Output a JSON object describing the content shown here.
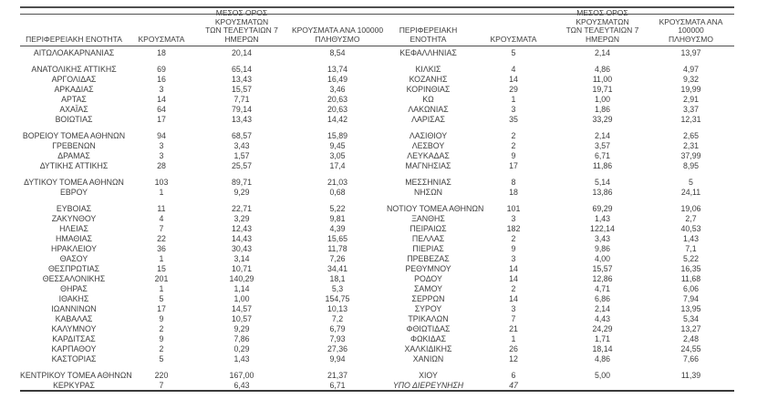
{
  "page": {
    "background": "#ffffff",
    "text_color": "#3d3d3d",
    "line_color": "#4f4f4f"
  },
  "table": {
    "headers": {
      "region": "ΠΕΡΙΦΕΡΕΙΑΚΗ ΕΝΟΤΗΤΑ",
      "cases": "ΚΡΟΥΣΜΑΤΑ",
      "avg7": "ΜΕΣΟΣ ΟΡΟΣ ΚΡΟΥΣΜΑΤΩΝ\nΤΩΝ ΤΕΛΕΥΤΑΙΩΝ 7\nΗΜΕΡΩΝ",
      "per100k": "ΚΡΟΥΣΜΑΤΑ ΑΝΑ 100000\nΠΛΗΘΥΣΜΟ"
    },
    "left_rows": [
      {
        "region": "ΑΙΤΩΛΟΑΚΑΡΝΑΝΙΑΣ",
        "cases": "18",
        "avg7": "20,14",
        "per100k": "8,54"
      },
      null,
      {
        "region": "ΑΝΑΤΟΛΙΚΗΣ ΑΤΤΙΚΗΣ",
        "cases": "69",
        "avg7": "65,14",
        "per100k": "13,74"
      },
      {
        "region": "ΑΡΓΟΛΙΔΑΣ",
        "cases": "16",
        "avg7": "13,43",
        "per100k": "16,49"
      },
      {
        "region": "ΑΡΚΑΔΙΑΣ",
        "cases": "3",
        "avg7": "15,57",
        "per100k": "3,46"
      },
      {
        "region": "ΑΡΤΑΣ",
        "cases": "14",
        "avg7": "7,71",
        "per100k": "20,63"
      },
      {
        "region": "ΑΧΑΪΑΣ",
        "cases": "64",
        "avg7": "79,14",
        "per100k": "20,63"
      },
      {
        "region": "ΒΟΙΩΤΙΑΣ",
        "cases": "17",
        "avg7": "13,43",
        "per100k": "14,42"
      },
      null,
      {
        "region": "ΒΟΡΕΙΟΥ ΤΟΜΕΑ ΑΘΗΝΩΝ",
        "cases": "94",
        "avg7": "68,57",
        "per100k": "15,89"
      },
      {
        "region": "ΓΡΕΒΕΝΩΝ",
        "cases": "3",
        "avg7": "3,43",
        "per100k": "9,45"
      },
      {
        "region": "ΔΡΑΜΑΣ",
        "cases": "3",
        "avg7": "1,57",
        "per100k": "3,05"
      },
      {
        "region": "ΔΥΤΙΚΗΣ ΑΤΤΙΚΗΣ",
        "cases": "28",
        "avg7": "25,57",
        "per100k": "17,4"
      },
      null,
      {
        "region": "ΔΥΤΙΚΟΥ ΤΟΜΕΑ ΑΘΗΝΩΝ",
        "cases": "103",
        "avg7": "89,71",
        "per100k": "21,03"
      },
      {
        "region": "ΕΒΡΟΥ",
        "cases": "1",
        "avg7": "9,29",
        "per100k": "0,68"
      },
      null,
      {
        "region": "ΕΥΒΟΙΑΣ",
        "cases": "11",
        "avg7": "22,71",
        "per100k": "5,22"
      },
      {
        "region": "ΖΑΚΥΝΘΟΥ",
        "cases": "4",
        "avg7": "3,29",
        "per100k": "9,81"
      },
      {
        "region": "ΗΛΕΙΑΣ",
        "cases": "7",
        "avg7": "12,43",
        "per100k": "4,39"
      },
      {
        "region": "ΗΜΑΘΙΑΣ",
        "cases": "22",
        "avg7": "14,43",
        "per100k": "15,65"
      },
      {
        "region": "ΗΡΑΚΛΕΙΟΥ",
        "cases": "36",
        "avg7": "30,43",
        "per100k": "11,78"
      },
      {
        "region": "ΘΑΣΟΥ",
        "cases": "1",
        "avg7": "3,14",
        "per100k": "7,26"
      },
      {
        "region": "ΘΕΣΠΡΩΤΙΑΣ",
        "cases": "15",
        "avg7": "10,71",
        "per100k": "34,41"
      },
      {
        "region": "ΘΕΣΣΑΛΟΝΙΚΗΣ",
        "cases": "201",
        "avg7": "140,29",
        "per100k": "18,1"
      },
      {
        "region": "ΘΗΡΑΣ",
        "cases": "1",
        "avg7": "1,14",
        "per100k": "5,3"
      },
      {
        "region": "ΙΘΑΚΗΣ",
        "cases": "5",
        "avg7": "1,00",
        "per100k": "154,75"
      },
      {
        "region": "ΙΩΑΝΝΙΝΩΝ",
        "cases": "17",
        "avg7": "14,57",
        "per100k": "10,13"
      },
      {
        "region": "ΚΑΒΑΛΑΣ",
        "cases": "9",
        "avg7": "10,57",
        "per100k": "7,2"
      },
      {
        "region": "ΚΑΛΥΜΝΟΥ",
        "cases": "2",
        "avg7": "9,29",
        "per100k": "6,79"
      },
      {
        "region": "ΚΑΡΔΙΤΣΑΣ",
        "cases": "9",
        "avg7": "7,86",
        "per100k": "7,93"
      },
      {
        "region": "ΚΑΡΠΑΘΟΥ",
        "cases": "2",
        "avg7": "0,29",
        "per100k": "27,36"
      },
      {
        "region": "ΚΑΣΤΟΡΙΑΣ",
        "cases": "5",
        "avg7": "1,43",
        "per100k": "9,94"
      },
      null,
      {
        "region": "ΚΕΝΤΡΙΚΟΥ ΤΟΜΕΑ ΑΘΗΝΩΝ",
        "cases": "220",
        "avg7": "167,00",
        "per100k": "21,37"
      },
      {
        "region": "ΚΕΡΚΥΡΑΣ",
        "cases": "7",
        "avg7": "6,43",
        "per100k": "6,71"
      }
    ],
    "right_rows": [
      {
        "region": "ΚΕΦΑΛΛΗΝΙΑΣ",
        "cases": "5",
        "avg7": "2,14",
        "per100k": "13,97"
      },
      null,
      {
        "region": "ΚΙΛΚΙΣ",
        "cases": "4",
        "avg7": "4,86",
        "per100k": "4,97"
      },
      {
        "region": "ΚΟΖΑΝΗΣ",
        "cases": "14",
        "avg7": "11,00",
        "per100k": "9,32"
      },
      {
        "region": "ΚΟΡΙΝΘΙΑΣ",
        "cases": "29",
        "avg7": "19,71",
        "per100k": "19,99"
      },
      {
        "region": "ΚΩ",
        "cases": "1",
        "avg7": "1,00",
        "per100k": "2,91"
      },
      {
        "region": "ΛΑΚΩΝΙΑΣ",
        "cases": "3",
        "avg7": "1,86",
        "per100k": "3,37"
      },
      {
        "region": "ΛΑΡΙΣΑΣ",
        "cases": "35",
        "avg7": "33,29",
        "per100k": "12,31"
      },
      null,
      {
        "region": "ΛΑΣΙΘΙΟΥ",
        "cases": "2",
        "avg7": "2,14",
        "per100k": "2,65"
      },
      {
        "region": "ΛΕΣΒΟΥ",
        "cases": "2",
        "avg7": "3,57",
        "per100k": "2,31"
      },
      {
        "region": "ΛΕΥΚΑΔΑΣ",
        "cases": "9",
        "avg7": "6,71",
        "per100k": "37,99"
      },
      {
        "region": "ΜΑΓΝΗΣΙΑΣ",
        "cases": "17",
        "avg7": "11,86",
        "per100k": "8,95"
      },
      null,
      {
        "region": "ΜΕΣΣΗΝΙΑΣ",
        "cases": "8",
        "avg7": "5,14",
        "per100k": "5"
      },
      {
        "region": "ΝΗΣΩΝ",
        "cases": "18",
        "avg7": "13,86",
        "per100k": "24,11"
      },
      null,
      {
        "region": "ΝΟΤΙΟΥ ΤΟΜΕΑ ΑΘΗΝΩΝ",
        "cases": "101",
        "avg7": "69,29",
        "per100k": "19,06"
      },
      {
        "region": "ΞΑΝΘΗΣ",
        "cases": "3",
        "avg7": "1,43",
        "per100k": "2,7"
      },
      {
        "region": "ΠΕΙΡΑΙΩΣ",
        "cases": "182",
        "avg7": "122,14",
        "per100k": "40,53"
      },
      {
        "region": "ΠΕΛΛΑΣ",
        "cases": "2",
        "avg7": "3,43",
        "per100k": "1,43"
      },
      {
        "region": "ΠΙΕΡΙΑΣ",
        "cases": "9",
        "avg7": "9,86",
        "per100k": "7,1"
      },
      {
        "region": "ΠΡΕΒΕΖΑΣ",
        "cases": "3",
        "avg7": "4,00",
        "per100k": "5,22"
      },
      {
        "region": "ΡΕΘΥΜΝΟΥ",
        "cases": "14",
        "avg7": "15,57",
        "per100k": "16,35"
      },
      {
        "region": "ΡΟΔΟΥ",
        "cases": "14",
        "avg7": "12,86",
        "per100k": "11,68"
      },
      {
        "region": "ΣΑΜΟΥ",
        "cases": "2",
        "avg7": "4,71",
        "per100k": "6,06"
      },
      {
        "region": "ΣΕΡΡΩΝ",
        "cases": "14",
        "avg7": "6,86",
        "per100k": "7,94"
      },
      {
        "region": "ΣΥΡΟΥ",
        "cases": "3",
        "avg7": "2,14",
        "per100k": "13,95"
      },
      {
        "region": "ΤΡΙΚΑΛΩΝ",
        "cases": "7",
        "avg7": "4,43",
        "per100k": "5,34"
      },
      {
        "region": "ΦΘΙΩΤΙΔΑΣ",
        "cases": "21",
        "avg7": "24,29",
        "per100k": "13,27"
      },
      {
        "region": "ΦΩΚΙΔΑΣ",
        "cases": "1",
        "avg7": "1,71",
        "per100k": "2,48"
      },
      {
        "region": "ΧΑΛΚΙΔΙΚΗΣ",
        "cases": "26",
        "avg7": "18,14",
        "per100k": "24,55"
      },
      {
        "region": "ΧΑΝΙΩΝ",
        "cases": "12",
        "avg7": "4,86",
        "per100k": "7,66"
      },
      null,
      {
        "region": "ΧΙΟΥ",
        "cases": "6",
        "avg7": "5,00",
        "per100k": "11,39"
      },
      {
        "region": "ΥΠΟ ΔΙΕΡΕΥΝΗΣΗ",
        "cases": "47",
        "avg7": "",
        "per100k": "",
        "italic": true
      }
    ]
  }
}
